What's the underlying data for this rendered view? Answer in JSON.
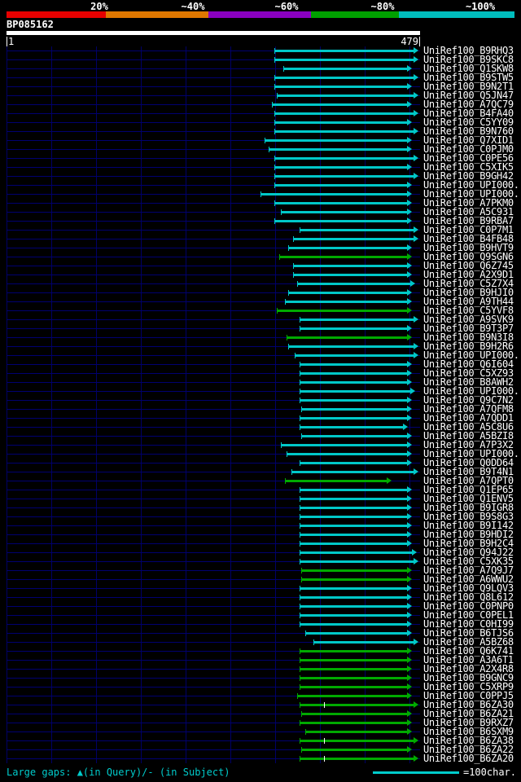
{
  "header": {
    "scale_labels": [
      "20%",
      "~40%",
      "~60%",
      "~80%",
      "~100%"
    ],
    "scale_colors": [
      "#e60000",
      "#e07800",
      "#8a00c0",
      "#00a000",
      "#00bdbd"
    ],
    "query_name": "BP085162",
    "query_start": "1",
    "query_end": "479"
  },
  "footer": {
    "gap_legend": "Large gaps: ▲(in Query)/- (in Subject)",
    "scale_unit_label": "=100char.",
    "accent_color": "#00cccc"
  },
  "chart_data": {
    "type": "bar",
    "orientation": "horizontal-span",
    "x_range": [
      1,
      479
    ],
    "bin_colors": {
      "cyan": "#00c8c8",
      "green": "#00aa00"
    },
    "bin_meaning": {
      "cyan": "~100% identity",
      "green": "~80% identity"
    },
    "hits": [
      {
        "label": "UniRef100_B9RHQ3",
        "start": 311,
        "end": 476,
        "bin": "cyan"
      },
      {
        "label": "UniRef100_B9SKC8",
        "start": 311,
        "end": 476,
        "bin": "cyan"
      },
      {
        "label": "UniRef100_Q1SKW8",
        "start": 321,
        "end": 469,
        "bin": "cyan"
      },
      {
        "label": "UniRef100_B9STW5",
        "start": 311,
        "end": 476,
        "bin": "cyan"
      },
      {
        "label": "UniRef100_B9N2T1",
        "start": 311,
        "end": 469,
        "bin": "cyan"
      },
      {
        "label": "UniRef100_Q5JN47",
        "start": 313,
        "end": 476,
        "bin": "cyan"
      },
      {
        "label": "UniRef100_A7QC79",
        "start": 308,
        "end": 469,
        "bin": "cyan"
      },
      {
        "label": "UniRef100_B4FA40",
        "start": 311,
        "end": 476,
        "bin": "cyan"
      },
      {
        "label": "UniRef100_C5YY09",
        "start": 311,
        "end": 469,
        "bin": "cyan"
      },
      {
        "label": "UniRef100_B9N760",
        "start": 311,
        "end": 476,
        "bin": "cyan"
      },
      {
        "label": "UniRef100_Q7XID1",
        "start": 299,
        "end": 469,
        "bin": "cyan"
      },
      {
        "label": "UniRef100_C0PJM0",
        "start": 304,
        "end": 469,
        "bin": "cyan"
      },
      {
        "label": "UniRef100_C0PE56",
        "start": 311,
        "end": 476,
        "bin": "cyan"
      },
      {
        "label": "UniRef100_C5XIK5",
        "start": 311,
        "end": 469,
        "bin": "cyan"
      },
      {
        "label": "UniRef100_B9GH42",
        "start": 311,
        "end": 476,
        "bin": "cyan"
      },
      {
        "label": "UniRef100_UPI000...",
        "start": 311,
        "end": 469,
        "bin": "cyan"
      },
      {
        "label": "UniRef100_UPI000...",
        "start": 295,
        "end": 469,
        "bin": "cyan"
      },
      {
        "label": "UniRef100_A7PKM0",
        "start": 311,
        "end": 469,
        "bin": "cyan"
      },
      {
        "label": "UniRef100_A5C931",
        "start": 318,
        "end": 469,
        "bin": "cyan"
      },
      {
        "label": "UniRef100_B9RBA7",
        "start": 311,
        "end": 469,
        "bin": "cyan"
      },
      {
        "label": "UniRef100_C0P7M1",
        "start": 340,
        "end": 476,
        "bin": "cyan"
      },
      {
        "label": "UniRef100_B4FB48",
        "start": 332,
        "end": 476,
        "bin": "cyan"
      },
      {
        "label": "UniRef100_B9HVT9",
        "start": 327,
        "end": 469,
        "bin": "cyan"
      },
      {
        "label": "UniRef100_Q9SGN6",
        "start": 316,
        "end": 469,
        "bin": "green"
      },
      {
        "label": "UniRef100_Q6Z745",
        "start": 332,
        "end": 469,
        "bin": "cyan"
      },
      {
        "label": "UniRef100_A2X9D1",
        "start": 332,
        "end": 469,
        "bin": "cyan"
      },
      {
        "label": "UniRef100_C5Z7X4",
        "start": 337,
        "end": 472,
        "bin": "cyan"
      },
      {
        "label": "UniRef100_B9HJI0",
        "start": 327,
        "end": 469,
        "bin": "cyan"
      },
      {
        "label": "UniRef100_A9TH44",
        "start": 323,
        "end": 469,
        "bin": "cyan"
      },
      {
        "label": "UniRef100_C5YVF8",
        "start": 313,
        "end": 469,
        "bin": "green"
      },
      {
        "label": "UniRef100_A9SVK9",
        "start": 340,
        "end": 476,
        "bin": "cyan"
      },
      {
        "label": "UniRef100_B9T3P7",
        "start": 340,
        "end": 469,
        "bin": "cyan"
      },
      {
        "label": "UniRef100_B9N3I8",
        "start": 325,
        "end": 469,
        "bin": "green"
      },
      {
        "label": "UniRef100_B9H2R6",
        "start": 327,
        "end": 476,
        "bin": "cyan"
      },
      {
        "label": "UniRef100_UPI000...",
        "start": 334,
        "end": 476,
        "bin": "cyan"
      },
      {
        "label": "UniRef100_Q6I604",
        "start": 340,
        "end": 469,
        "bin": "cyan"
      },
      {
        "label": "UniRef100_C5XZ93",
        "start": 340,
        "end": 469,
        "bin": "cyan"
      },
      {
        "label": "UniRef100_B8AWH2",
        "start": 340,
        "end": 469,
        "bin": "cyan"
      },
      {
        "label": "UniRef100_UPI000...",
        "start": 340,
        "end": 472,
        "bin": "cyan"
      },
      {
        "label": "UniRef100_Q9C7N2",
        "start": 340,
        "end": 469,
        "bin": "cyan"
      },
      {
        "label": "UniRef100_A7QFM8",
        "start": 342,
        "end": 469,
        "bin": "cyan"
      },
      {
        "label": "UniRef100_A7QDD1",
        "start": 340,
        "end": 469,
        "bin": "cyan"
      },
      {
        "label": "UniRef100_A5C8U6",
        "start": 340,
        "end": 464,
        "bin": "cyan"
      },
      {
        "label": "UniRef100_A5BZI8",
        "start": 342,
        "end": 469,
        "bin": "cyan"
      },
      {
        "label": "UniRef100_A7P3X2",
        "start": 318,
        "end": 469,
        "bin": "cyan"
      },
      {
        "label": "UniRef100_UPI000...",
        "start": 325,
        "end": 469,
        "bin": "cyan"
      },
      {
        "label": "UniRef100_Q0DD64",
        "start": 340,
        "end": 469,
        "bin": "cyan"
      },
      {
        "label": "UniRef100_B9T4N1",
        "start": 330,
        "end": 476,
        "bin": "cyan"
      },
      {
        "label": "UniRef100_A7QPT0",
        "start": 323,
        "end": 445,
        "bin": "green"
      },
      {
        "label": "UniRef100_Q1EP65",
        "start": 340,
        "end": 469,
        "bin": "cyan"
      },
      {
        "label": "UniRef100_Q1ENV5",
        "start": 340,
        "end": 469,
        "bin": "cyan"
      },
      {
        "label": "UniRef100_B9IGR8",
        "start": 340,
        "end": 469,
        "bin": "cyan"
      },
      {
        "label": "UniRef100_B9S8G3",
        "start": 340,
        "end": 469,
        "bin": "cyan"
      },
      {
        "label": "UniRef100_B9I142",
        "start": 340,
        "end": 469,
        "bin": "cyan"
      },
      {
        "label": "UniRef100_B9HDI2",
        "start": 340,
        "end": 469,
        "bin": "cyan"
      },
      {
        "label": "UniRef100_B9H2C4",
        "start": 340,
        "end": 469,
        "bin": "cyan"
      },
      {
        "label": "UniRef100_Q94J22",
        "start": 340,
        "end": 474,
        "bin": "cyan"
      },
      {
        "label": "UniRef100_C5XK35",
        "start": 340,
        "end": 476,
        "bin": "cyan"
      },
      {
        "label": "UniRef100_A7Q9J7",
        "start": 342,
        "end": 469,
        "bin": "green"
      },
      {
        "label": "UniRef100_A6WWU2",
        "start": 342,
        "end": 469,
        "bin": "green"
      },
      {
        "label": "UniRef100_Q9LQV3",
        "start": 340,
        "end": 469,
        "bin": "cyan"
      },
      {
        "label": "UniRef100_Q8L612",
        "start": 340,
        "end": 469,
        "bin": "cyan"
      },
      {
        "label": "UniRef100_C0PNP0",
        "start": 340,
        "end": 469,
        "bin": "cyan"
      },
      {
        "label": "UniRef100_C0PEL1",
        "start": 340,
        "end": 469,
        "bin": "cyan"
      },
      {
        "label": "UniRef100_C0HI99",
        "start": 340,
        "end": 469,
        "bin": "cyan"
      },
      {
        "label": "UniRef100_B6TJS6",
        "start": 346,
        "end": 469,
        "bin": "cyan"
      },
      {
        "label": "UniRef100_A5BZ68",
        "start": 356,
        "end": 476,
        "bin": "cyan"
      },
      {
        "label": "UniRef100_Q6K741",
        "start": 340,
        "end": 469,
        "bin": "green"
      },
      {
        "label": "UniRef100_A3A6T1",
        "start": 340,
        "end": 469,
        "bin": "green"
      },
      {
        "label": "UniRef100_A2X4R8",
        "start": 340,
        "end": 469,
        "bin": "green"
      },
      {
        "label": "UniRef100_B9GNC9",
        "start": 340,
        "end": 469,
        "bin": "green"
      },
      {
        "label": "UniRef100_C5XRP9",
        "start": 340,
        "end": 469,
        "bin": "green"
      },
      {
        "label": "UniRef100_C0PPJ5",
        "start": 337,
        "end": 469,
        "bin": "green"
      },
      {
        "label": "UniRef100_B6ZA30",
        "start": 340,
        "end": 476,
        "bin": "green",
        "gaps": [
          368
        ]
      },
      {
        "label": "UniRef100_B6ZA21",
        "start": 342,
        "end": 469,
        "bin": "green"
      },
      {
        "label": "UniRef100_B9RXZ7",
        "start": 340,
        "end": 469,
        "bin": "green"
      },
      {
        "label": "UniRef100_B6SXM9",
        "start": 346,
        "end": 469,
        "bin": "green"
      },
      {
        "label": "UniRef100_B6ZA38",
        "start": 340,
        "end": 476,
        "bin": "green",
        "gaps": [
          368
        ]
      },
      {
        "label": "UniRef100_B6ZA22",
        "start": 342,
        "end": 469,
        "bin": "green"
      },
      {
        "label": "UniRef100_B6ZA20",
        "start": 340,
        "end": 476,
        "bin": "green",
        "gaps": [
          368
        ]
      }
    ]
  }
}
